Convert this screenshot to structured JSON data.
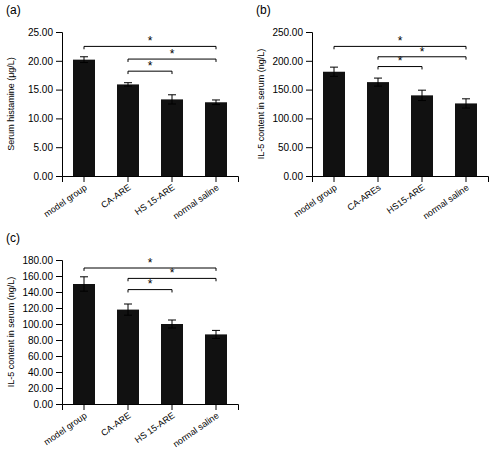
{
  "chart_data": [
    {
      "type": "bar",
      "title": "(a)",
      "ylabel": "Serum histamine (μg/L)",
      "categories": [
        "model group",
        "CA-ARE",
        "HS 15-ARE",
        "normal saline"
      ],
      "values": [
        20.2,
        15.9,
        13.3,
        12.8
      ],
      "errors": [
        0.5,
        0.3,
        0.8,
        0.4
      ],
      "color": "#111111",
      "ylim": [
        0,
        25
      ],
      "yticks": [
        {
          "value": 0,
          "label": "0.00"
        },
        {
          "value": 5,
          "label": "5.00"
        },
        {
          "value": 10,
          "label": "10.00"
        },
        {
          "value": 15,
          "label": "15.00"
        },
        {
          "value": 20,
          "label": "20.00"
        },
        {
          "value": 25,
          "label": "25.00"
        }
      ],
      "brackets": [
        {
          "from": "model group",
          "to": "normal saline",
          "y": 22.5,
          "label": "*"
        },
        {
          "from": "CA-ARE",
          "to": "normal saline",
          "y": 20.3,
          "label": "*"
        },
        {
          "from": "CA-ARE",
          "to": "HS 15-ARE",
          "y": 18.2,
          "label": "*"
        }
      ]
    },
    {
      "type": "bar",
      "title": "(b)",
      "ylabel": "IL-5 content in serum (ng/L)",
      "categories": [
        "model group",
        "CA-AREs",
        "HS15-ARE",
        "normal saline"
      ],
      "values": [
        181,
        163,
        140,
        126
      ],
      "errors": [
        8,
        7,
        9,
        8
      ],
      "color": "#111111",
      "ylim": [
        0,
        250
      ],
      "yticks": [
        {
          "value": 0,
          "label": "0.00"
        },
        {
          "value": 50,
          "label": "50.00"
        },
        {
          "value": 100,
          "label": "100.00"
        },
        {
          "value": 150,
          "label": "150.00"
        },
        {
          "value": 200,
          "label": "200.00"
        },
        {
          "value": 250,
          "label": "250.00"
        }
      ],
      "brackets": [
        {
          "from": "model group",
          "to": "normal saline",
          "y": 225,
          "label": "*"
        },
        {
          "from": "CA-AREs",
          "to": "normal saline",
          "y": 207,
          "label": "*"
        },
        {
          "from": "CA-AREs",
          "to": "HS15-ARE",
          "y": 190,
          "label": "*"
        }
      ]
    },
    {
      "type": "bar",
      "title": "(c)",
      "ylabel": "IL-5 content in serum (ng/L)",
      "categories": [
        "model group",
        "CA-ARE",
        "HS 15-ARE",
        "normal saline"
      ],
      "values": [
        150,
        118,
        100,
        87
      ],
      "errors": [
        9,
        7,
        5,
        5
      ],
      "color": "#111111",
      "ylim": [
        0,
        180
      ],
      "yticks": [
        {
          "value": 0,
          "label": "0.00"
        },
        {
          "value": 20,
          "label": "20.00"
        },
        {
          "value": 40,
          "label": "40.00"
        },
        {
          "value": 60,
          "label": "60.00"
        },
        {
          "value": 80,
          "label": "80.00"
        },
        {
          "value": 100,
          "label": "100.00"
        },
        {
          "value": 120,
          "label": "120.00"
        },
        {
          "value": 140,
          "label": "140.00"
        },
        {
          "value": 160,
          "label": "160.00"
        },
        {
          "value": 180,
          "label": "180.00"
        }
      ],
      "brackets": [
        {
          "from": "model group",
          "to": "normal saline",
          "y": 170,
          "label": "*"
        },
        {
          "from": "CA-ARE",
          "to": "normal saline",
          "y": 157,
          "label": "*"
        },
        {
          "from": "CA-ARE",
          "to": "HS 15-ARE",
          "y": 143,
          "label": "*"
        }
      ]
    }
  ]
}
